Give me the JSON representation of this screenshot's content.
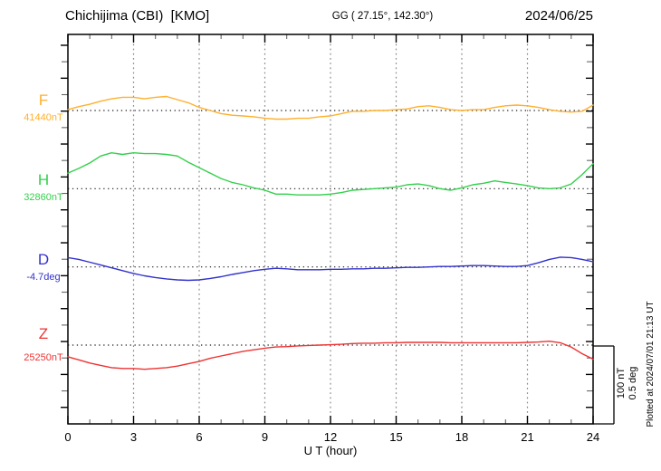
{
  "header": {
    "station": "Chichijima (CBI)  [KMO]",
    "coords": "GG ( 27.15°, 142.30°)",
    "date": "2024/06/25"
  },
  "xaxis": {
    "label": "U T (hour)",
    "tick_labels": [
      0,
      3,
      6,
      9,
      12,
      15,
      18,
      21,
      24
    ]
  },
  "scalebar": {
    "nt_label": "100 nT",
    "deg_label": "0.5 deg"
  },
  "plotted_note": "Plotted at 2024/07/01 21:13 UT",
  "colors": {
    "frame": "#000000",
    "grid_vertical": "#8c8c8c",
    "baseline_dots": "#1a1a1a",
    "minor_tick": "#666666",
    "major_tick": "#000000"
  },
  "chart_data": {
    "type": "line",
    "title": "Chichijima (CBI) [KMO] magnetogram 2024/06/25",
    "xlabel": "U T (hour)",
    "xlim": [
      0,
      24
    ],
    "grid": "dotted vertical every 3 h; dotted horizontal baseline per channel",
    "scale_per_division": {
      "nT": 100,
      "deg": 0.5
    },
    "x_hours": [
      0,
      0.5,
      1,
      1.5,
      2,
      2.5,
      3,
      3.5,
      4,
      4.5,
      5,
      5.5,
      6,
      6.5,
      7,
      7.5,
      8,
      8.5,
      9,
      9.5,
      10,
      10.5,
      11,
      11.5,
      12,
      12.5,
      13,
      13.5,
      14,
      14.5,
      15,
      15.5,
      16,
      16.5,
      17,
      17.5,
      18,
      18.5,
      19,
      19.5,
      20,
      20.5,
      21,
      21.5,
      22,
      22.5,
      23,
      23.5,
      24
    ],
    "series": [
      {
        "name": "F",
        "unit": "nT",
        "base_value": 41440,
        "base_label": "41440nT",
        "color": "#FFB02E",
        "offsets": [
          1,
          5,
          8,
          12,
          15,
          17,
          17,
          15,
          17,
          18,
          14,
          10,
          4,
          0,
          -4,
          -6,
          -7,
          -8,
          -10,
          -11,
          -11,
          -10,
          -10,
          -8,
          -7,
          -4,
          -1,
          -1,
          0,
          0,
          1,
          2,
          5,
          6,
          4,
          1,
          0,
          1,
          1,
          4,
          6,
          7,
          6,
          4,
          1,
          -1,
          -2,
          -1,
          7
        ]
      },
      {
        "name": "H",
        "unit": "nT",
        "base_value": 32860,
        "base_label": "32860nT",
        "color": "#33D04C",
        "offsets": [
          20,
          26,
          33,
          42,
          46,
          44,
          46,
          45,
          45,
          44,
          42,
          34,
          27,
          20,
          13,
          8,
          5,
          1,
          -2,
          -7,
          -7,
          -8,
          -8,
          -8,
          -7,
          -5,
          -2,
          -1,
          0,
          1,
          2,
          5,
          6,
          4,
          0,
          -2,
          1,
          5,
          7,
          10,
          8,
          6,
          4,
          1,
          0,
          1,
          6,
          18,
          32
        ]
      },
      {
        "name": "D",
        "unit": "deg",
        "base_value": -4.7,
        "base_label": "-4.7deg",
        "color": "#3232CD",
        "offsets": [
          0.06,
          0.048,
          0.03,
          0.012,
          -0.006,
          -0.024,
          -0.042,
          -0.057,
          -0.068,
          -0.077,
          -0.083,
          -0.086,
          -0.083,
          -0.074,
          -0.063,
          -0.048,
          -0.036,
          -0.024,
          -0.015,
          -0.009,
          -0.012,
          -0.018,
          -0.018,
          -0.018,
          -0.015,
          -0.015,
          -0.012,
          -0.012,
          -0.009,
          -0.009,
          -0.006,
          -0.003,
          -0.003,
          0,
          0.003,
          0.003,
          0.006,
          0.009,
          0.009,
          0.006,
          0.003,
          0.003,
          0.009,
          0.027,
          0.048,
          0.063,
          0.06,
          0.048,
          0.033
        ]
      },
      {
        "name": "Z",
        "unit": "nT",
        "base_value": 25250,
        "base_label": "25250nT",
        "color": "#EE3333",
        "offsets": [
          -15,
          -19,
          -23,
          -26,
          -29,
          -30,
          -30,
          -31,
          -30,
          -29,
          -27,
          -24,
          -21,
          -17,
          -14,
          -11,
          -8,
          -6,
          -4,
          -2.5,
          -2,
          -1,
          -0.5,
          0,
          0.5,
          1,
          2,
          2.5,
          2.5,
          3,
          3,
          3.5,
          3.5,
          3.5,
          3.5,
          3,
          3,
          3,
          3,
          3,
          3,
          3,
          3.5,
          4,
          5,
          3,
          -2.5,
          -11,
          -18
        ]
      }
    ]
  }
}
